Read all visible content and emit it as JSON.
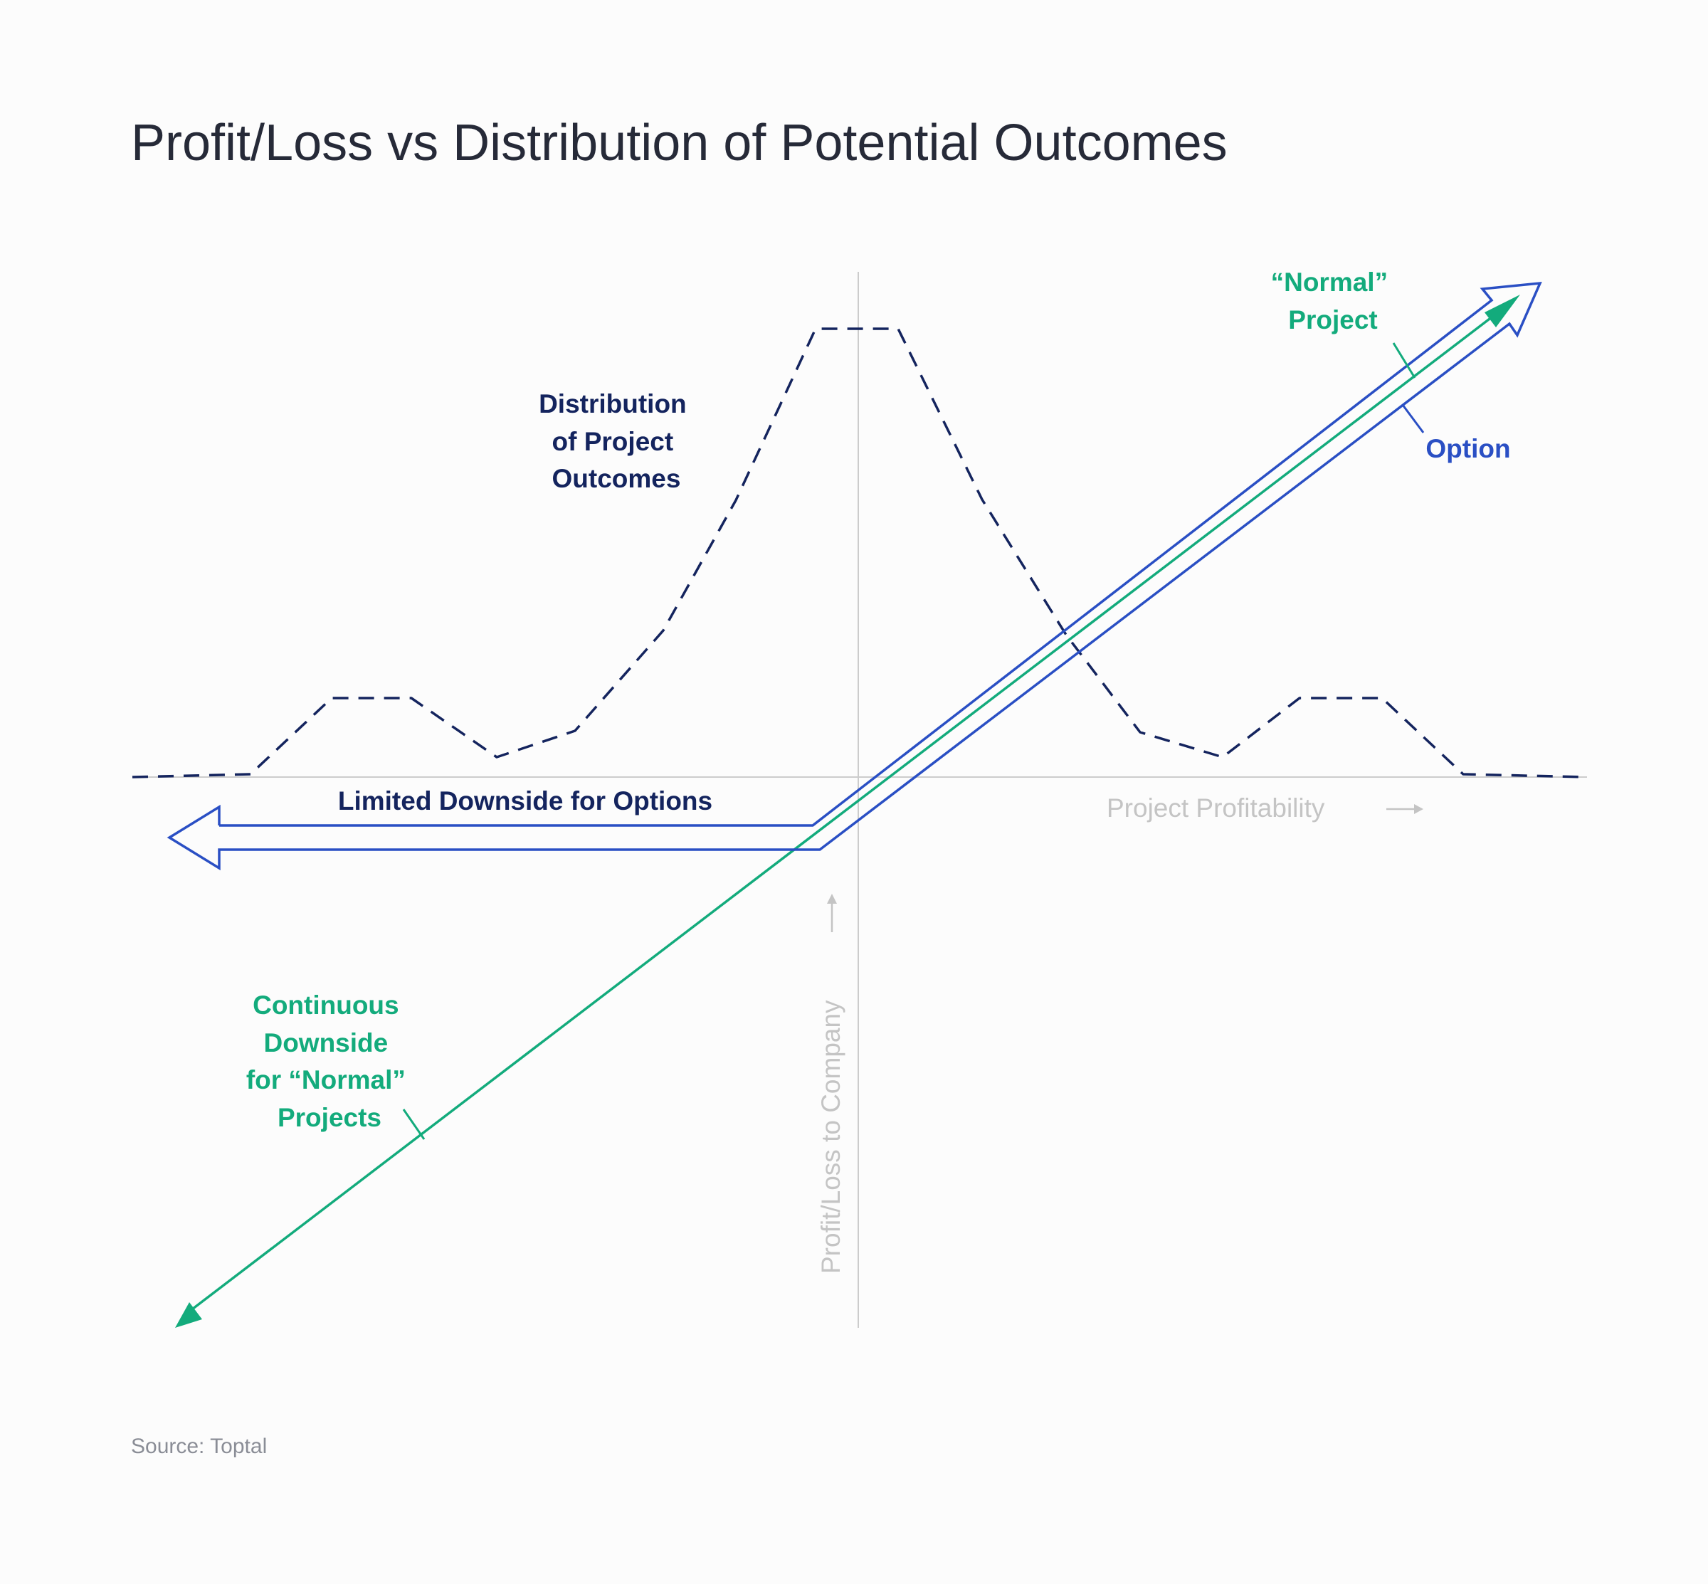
{
  "title": "Profit/Loss vs Distribution of Potential Outcomes",
  "source": "Source: Toptal",
  "axes": {
    "x_label": "Project Profitability",
    "y_label": "Profit/Loss to Company",
    "axis_color": "#cccccc",
    "label_color": "#c4c4c4"
  },
  "labels": {
    "distribution": [
      "Distribution",
      "of Project",
      "Outcomes"
    ],
    "limited_downside": "Limited Downside for Options",
    "normal_project": [
      "“Normal”",
      "Project"
    ],
    "option": "Option",
    "continuous_downside": [
      "Continuous",
      "Downside",
      "for “Normal”",
      "Projects"
    ]
  },
  "colors": {
    "title": "#262a38",
    "distribution": "#14245e",
    "option": "#2a4fc4",
    "normal": "#13ab7c",
    "source": "#8a8d96"
  },
  "icons": {
    "x_axis_arrow": "right-arrow-icon",
    "y_axis_arrow": "up-arrow-icon"
  }
}
